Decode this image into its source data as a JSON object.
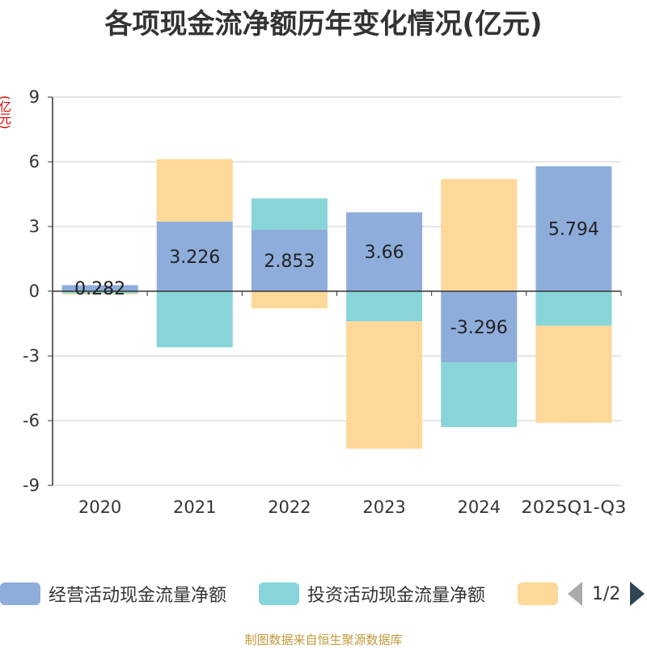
{
  "title": "各项现金流净额历年变化情况(亿元)",
  "unit_label": "(亿元)",
  "source": "制图数据来自恒生聚源数据库",
  "legend": {
    "items": [
      {
        "label": "经营活动现金流量净额",
        "color": "#8eaddb"
      },
      {
        "label": "投资活动现金流量净额",
        "color": "#87d5d8"
      },
      {
        "label": "",
        "color": "#fed898"
      }
    ],
    "page": "1/2"
  },
  "chart_data": {
    "type": "bar",
    "stacked": true,
    "categories": [
      "2020",
      "2021",
      "2022",
      "2023",
      "2024",
      "2025Q1-Q3"
    ],
    "ylim": [
      -9,
      9
    ],
    "yticks": [
      "9",
      "6",
      "3",
      "0",
      "-3",
      "-6",
      "-9"
    ],
    "ytick_values": [
      9,
      6,
      3,
      0,
      -3,
      -6,
      -9
    ],
    "grid": true,
    "series": [
      {
        "name": "经营活动现金流量净额",
        "color": "#8eaddb",
        "values": [
          0.282,
          3.226,
          2.853,
          3.66,
          -3.296,
          5.794
        ],
        "labels": [
          "0.282",
          "3.226",
          "2.853",
          "3.66",
          "-3.296",
          "5.794"
        ]
      },
      {
        "name": "投资活动现金流量净额",
        "color": "#87d5d8",
        "values": [
          -0.1,
          -2.6,
          1.45,
          -1.4,
          -3.0,
          -1.6
        ]
      },
      {
        "color": "#fed898",
        "values": [
          -0.05,
          2.9,
          -0.8,
          -5.9,
          5.2,
          -4.5
        ]
      }
    ]
  }
}
